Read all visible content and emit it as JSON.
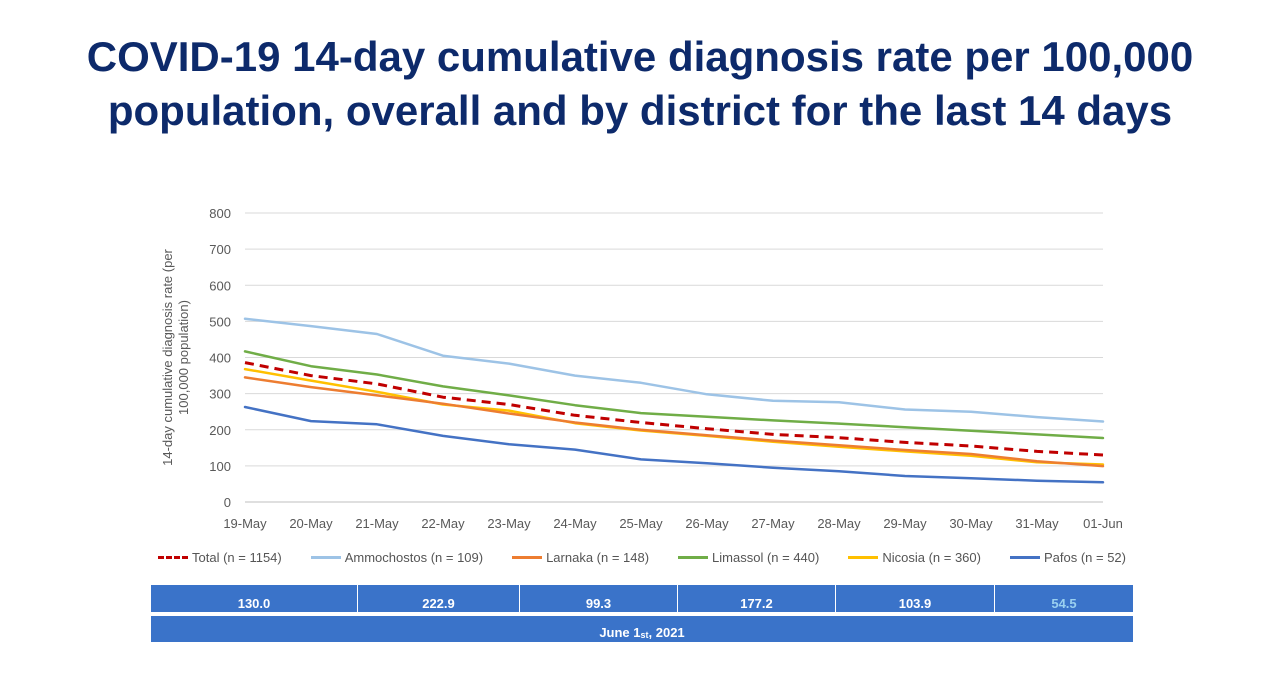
{
  "title_lines": [
    "COVID-19 14-day cumulative diagnosis rate per 100,000",
    "population, overall and by district for the last 14 days"
  ],
  "chart_data": {
    "type": "line",
    "title": "COVID-19 14-day cumulative diagnosis rate per 100,000 population, overall and by district for the last 14 days",
    "ylabel_lines": [
      "14-day cumulative diagnosis rate (per",
      "100,000 population)"
    ],
    "xlabel": "",
    "ylim": [
      0,
      800
    ],
    "yticks": [
      0,
      100,
      200,
      300,
      400,
      500,
      600,
      700,
      800
    ],
    "grid": true,
    "legend": "bottom",
    "categories": [
      "19-May",
      "20-May",
      "21-May",
      "22-May",
      "23-May",
      "24-May",
      "25-May",
      "26-May",
      "27-May",
      "28-May",
      "29-May",
      "30-May",
      "31-May",
      "01-Jun"
    ],
    "series": [
      {
        "name": "Total (n = 1154)",
        "color": "#c00000",
        "dashed": true,
        "values": [
          386,
          350,
          327,
          290,
          270,
          240,
          220,
          203,
          187,
          178,
          165,
          155,
          140,
          130
        ]
      },
      {
        "name": "Ammochostos (n = 109)",
        "color": "#9dc3e6",
        "dashed": false,
        "values": [
          507,
          487,
          465,
          405,
          383,
          350,
          330,
          298,
          280,
          276,
          256,
          250,
          235,
          222.9
        ]
      },
      {
        "name": "Larnaka (n = 148)",
        "color": "#ed7d31",
        "dashed": false,
        "values": [
          345,
          318,
          295,
          272,
          245,
          220,
          200,
          185,
          170,
          157,
          144,
          133,
          113,
          99.3
        ]
      },
      {
        "name": "Limassol (n = 440)",
        "color": "#70ad47",
        "dashed": false,
        "values": [
          417,
          376,
          353,
          320,
          295,
          268,
          246,
          236,
          226,
          217,
          207,
          197,
          187,
          177.2
        ]
      },
      {
        "name": "Nicosia (n = 360)",
        "color": "#ffc000",
        "dashed": false,
        "values": [
          368,
          336,
          305,
          270,
          253,
          218,
          198,
          183,
          167,
          153,
          140,
          128,
          110,
          103.9
        ]
      },
      {
        "name": "Pafos (n = 52)",
        "color": "#4472c4",
        "dashed": false,
        "values": [
          263,
          224,
          215,
          183,
          160,
          145,
          118,
          107,
          95,
          85,
          72,
          66,
          59,
          54.5
        ]
      }
    ]
  },
  "table": {
    "values": [
      "130.0",
      "222.9",
      "99.3",
      "177.2",
      "103.9",
      "54.5"
    ],
    "date_prefix": "June 1",
    "date_sup": "st",
    "date_suffix": ", 2021"
  }
}
